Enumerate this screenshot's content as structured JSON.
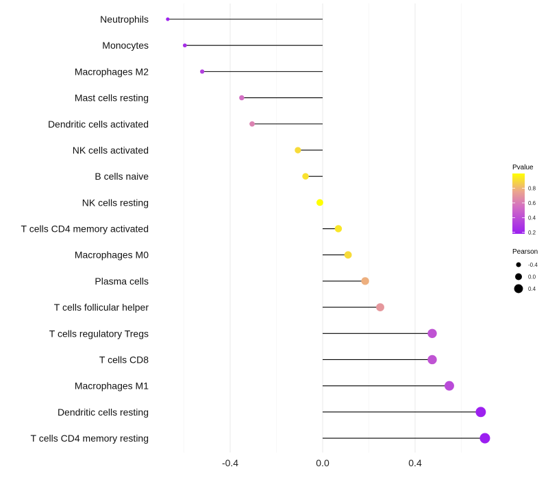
{
  "chart_data": {
    "type": "lollipop",
    "title": "",
    "xlabel": "",
    "ylabel": "",
    "xlim": [
      -0.7,
      0.75
    ],
    "xticks": [
      "-0.4",
      "0.0",
      "0.4"
    ],
    "xtick_values": [
      -0.4,
      0.0,
      0.4
    ],
    "categories": [
      "Neutrophils",
      "Monocytes",
      "Macrophages M2",
      "Mast cells resting",
      "Dendritic cells activated",
      "NK cells activated",
      "B cells naive",
      "NK cells resting",
      "T cells CD4 memory activated",
      "Macrophages M0",
      "Plasma cells",
      "T cells follicular helper",
      "T cells regulatory  Tregs",
      "T cells CD8",
      "Macrophages M1",
      "Dendritic cells resting",
      "T cells CD4 memory resting"
    ],
    "pearson": [
      -0.67,
      -0.596,
      -0.521,
      -0.35,
      -0.305,
      -0.107,
      -0.074,
      -0.012,
      0.068,
      0.11,
      0.184,
      0.249,
      0.474,
      0.474,
      0.548,
      0.684,
      0.702
    ],
    "pvalue": [
      0.2,
      0.25,
      0.33,
      0.55,
      0.62,
      0.9,
      0.92,
      1.0,
      0.93,
      0.9,
      0.78,
      0.7,
      0.42,
      0.42,
      0.38,
      0.19,
      0.18
    ],
    "legend": {
      "color_title": "Pvalue",
      "color_ticks": [
        "0.8",
        "0.6",
        "0.4",
        "0.2"
      ],
      "color_tick_values": [
        0.8,
        0.6,
        0.4,
        0.2
      ],
      "size_title": "Pearson",
      "size_ticks": [
        "-0.4",
        "0.0",
        "0.4"
      ],
      "size_tick_values": [
        -0.4,
        0.0,
        0.4
      ],
      "placement": "right"
    },
    "colors": {
      "low": "#9b1ff0",
      "mid": "#e0859a",
      "high_mid": "#f2c47a",
      "high": "#ffff00"
    }
  }
}
